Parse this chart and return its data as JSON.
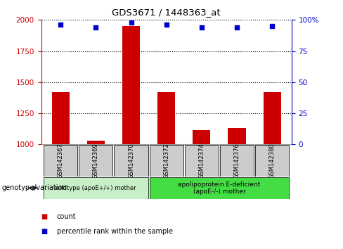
{
  "title": "GDS3671 / 1448363_at",
  "samples": [
    "GSM142367",
    "GSM142369",
    "GSM142370",
    "GSM142372",
    "GSM142374",
    "GSM142376",
    "GSM142380"
  ],
  "count_values": [
    1420,
    1030,
    1950,
    1420,
    1115,
    1130,
    1420
  ],
  "percentile_values": [
    96,
    94,
    98,
    96,
    94,
    94,
    95
  ],
  "ylim_left": [
    1000,
    2000
  ],
  "ylim_right": [
    0,
    100
  ],
  "yticks_left": [
    1000,
    1250,
    1500,
    1750,
    2000
  ],
  "yticks_right": [
    0,
    25,
    50,
    75,
    100
  ],
  "ytick_labels_right": [
    "0",
    "25",
    "50",
    "75",
    "100%"
  ],
  "bar_color": "#cc0000",
  "dot_color": "#0000cc",
  "bar_width": 0.5,
  "group1_indices": [
    0,
    1,
    2
  ],
  "group2_indices": [
    3,
    4,
    5,
    6
  ],
  "group1_label": "wildtype (apoE+/+) mother",
  "group2_label": "apolipoprotein E-deficient\n(apoE-/-) mother",
  "group1_color": "#c8f0c8",
  "group2_color": "#44dd44",
  "xlabel_group": "genotype/variation",
  "legend_count_label": "count",
  "legend_pct_label": "percentile rank within the sample",
  "tick_color_left": "#cc0000",
  "tick_color_right": "#0000cc",
  "grid_color": "#000000",
  "sample_box_color": "#cccccc",
  "fig_width": 4.88,
  "fig_height": 3.54,
  "fig_dpi": 100
}
